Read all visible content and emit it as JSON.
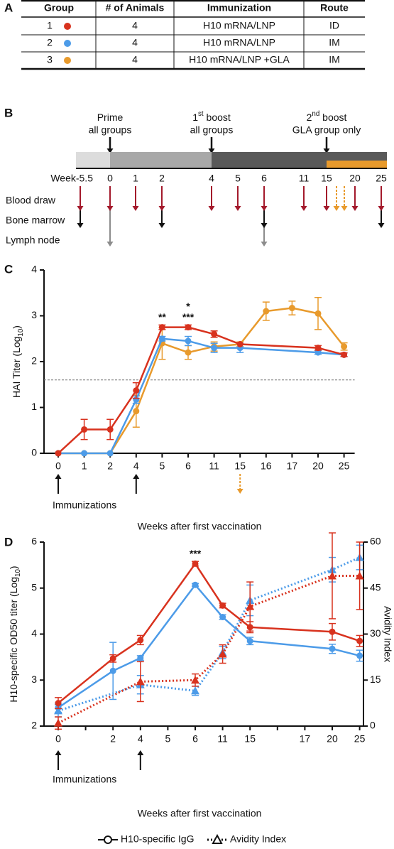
{
  "panel_a": {
    "label": "A",
    "table": {
      "header": [
        "Group",
        "# of Animals",
        "Immunization",
        "Route"
      ],
      "rows": [
        [
          "1",
          "4",
          "H10 mRNA/LNP",
          "ID"
        ],
        [
          "2",
          "4",
          "H10 mRNA/LNP",
          "IM"
        ],
        [
          "3",
          "4",
          "H10 mRNA/LNP +GLA",
          "IM"
        ]
      ],
      "group_colors": [
        "#d8321e",
        "#4c9be8",
        "#e89a2c"
      ]
    }
  },
  "panel_b": {
    "label": "B",
    "events": [
      {
        "title": [
          {
            "text": "Prime"
          }
        ],
        "subtitle": "all groups"
      },
      {
        "title": [
          {
            "text": "1"
          },
          {
            "text": "st",
            "sup": true
          },
          {
            "text": " boost"
          }
        ],
        "subtitle": "all groups"
      },
      {
        "title": [
          {
            "text": "2"
          },
          {
            "text": "nd",
            "sup": true
          },
          {
            "text": " boost"
          }
        ],
        "subtitle": "GLA group only"
      }
    ],
    "weeks": [
      "Week-5.5",
      "0",
      "1",
      "2",
      "4",
      "5",
      "6",
      "11",
      "15",
      "20",
      "25"
    ],
    "samples": [
      {
        "label": "Blood draw",
        "color": "#a3192b",
        "weeks": [
          "Week-5.5",
          "0",
          "1",
          "2",
          "4",
          "5",
          "6",
          "11",
          "15",
          "20",
          "25"
        ]
      },
      {
        "label": "Bone marrow",
        "color": "#111111",
        "weeks": [
          "Week-5.5",
          "2",
          "6",
          "25"
        ]
      },
      {
        "label": "Lymph node",
        "color": "#8c8c8c",
        "weeks": [
          "0",
          "6"
        ]
      }
    ],
    "gla_color": "#e89a2c"
  },
  "chart_data": [
    {
      "type": "line",
      "panel_label": "C",
      "y_label": [
        {
          "text": "HAI Titer (Log"
        },
        {
          "text": "10",
          "sub": true
        },
        {
          "text": ")"
        }
      ],
      "x_label": "Weeks after first vaccination",
      "x_note": "Immunizations",
      "immunizations_at": [
        "0",
        "4"
      ],
      "booster_at": [
        "15"
      ],
      "booster_color": "#e89a2c",
      "categories": [
        "0",
        "1",
        "2",
        "4",
        "5",
        "6",
        "11",
        "15",
        "16",
        "17",
        "20",
        "25"
      ],
      "ylim": [
        0,
        4
      ],
      "yticks": [
        0,
        1,
        2,
        3,
        4
      ],
      "threshold": 1.6,
      "series": [
        {
          "color": "#d8321e",
          "x": [
            "0",
            "1",
            "2",
            "4",
            "5",
            "6",
            "11",
            "15",
            "20",
            "25"
          ],
          "values": [
            0,
            0.52,
            0.52,
            1.37,
            2.75,
            2.75,
            2.6,
            2.38,
            2.3,
            2.15
          ],
          "errors": [
            null,
            0.22,
            0.22,
            0.17,
            0.05,
            0.05,
            0.07,
            null,
            0.05,
            0.04
          ]
        },
        {
          "color": "#4c9be8",
          "x": [
            "0",
            "1",
            "2",
            "4",
            "5",
            "6",
            "11",
            "15",
            "20",
            "25"
          ],
          "values": [
            0,
            0,
            0,
            1.17,
            2.5,
            2.45,
            2.3,
            2.3,
            2.2,
            2.15
          ],
          "errors": [
            null,
            null,
            null,
            0.08,
            0.05,
            0.1,
            0.1,
            0.1,
            0.04,
            0.04
          ]
        },
        {
          "color": "#e89a2c",
          "x": [
            "0",
            "1",
            "2",
            "4",
            "5",
            "6",
            "11",
            "15",
            "16",
            "17",
            "20",
            "25"
          ],
          "values": [
            0,
            0,
            0,
            0.92,
            2.4,
            2.2,
            2.33,
            2.38,
            3.1,
            3.17,
            3.05,
            2.33
          ],
          "errors": [
            null,
            null,
            null,
            0.35,
            0.35,
            0.15,
            0.1,
            0.05,
            0.2,
            0.15,
            0.35,
            0.08
          ]
        }
      ],
      "annotations": [
        {
          "text": "**",
          "x": "5",
          "color": "#e89a2c"
        },
        {
          "text": "***",
          "x": "6",
          "color": "#e89a2c"
        },
        {
          "text": "*",
          "x": "6",
          "color": "#4c9be8"
        }
      ]
    },
    {
      "type": "line",
      "panel_label": "D",
      "y_label": [
        {
          "text": "H10-specific OD50 titer (Log"
        },
        {
          "text": "10",
          "sub": true
        },
        {
          "text": ")"
        }
      ],
      "y2_label": "Avidity Index",
      "x_label": "Weeks after first vaccination",
      "x_note": "Immunizations",
      "immunizations_at": [
        "0",
        "4"
      ],
      "categories": [
        "0",
        null,
        "2",
        "4",
        "5",
        "6",
        "11",
        "15",
        null,
        "17",
        "20",
        "25"
      ],
      "ylim": [
        2,
        6
      ],
      "yticks": [
        2,
        3,
        4,
        5,
        6
      ],
      "y2lim": [
        0,
        60
      ],
      "y2ticks": [
        0,
        15,
        30,
        45,
        60
      ],
      "series": [
        {
          "color": "#d8321e",
          "style": "solid",
          "marker": "circle",
          "x": [
            "0",
            "2",
            "4",
            "6",
            "11",
            "15",
            "20",
            "25"
          ],
          "values": [
            2.5,
            3.47,
            3.87,
            5.53,
            4.62,
            4.15,
            4.05,
            3.85
          ],
          "errors": [
            0.12,
            0.08,
            0.1,
            0.05,
            0.05,
            0.12,
            0.18,
            0.12
          ]
        },
        {
          "color": "#4c9be8",
          "style": "solid",
          "marker": "circle",
          "x": [
            "0",
            "2",
            "4",
            "6",
            "11",
            "15",
            "20",
            "25"
          ],
          "values": [
            2.4,
            3.2,
            3.48,
            5.07,
            4.37,
            3.85,
            3.68,
            3.53
          ],
          "errors": [
            0.1,
            0.62,
            0.05,
            0.03,
            0.05,
            0.08,
            0.1,
            0.12
          ]
        },
        {
          "color": "#d8321e",
          "style": "dotted",
          "marker": "triangle",
          "axis": "y2",
          "x": [
            "0",
            "4",
            "6",
            "11",
            "15",
            "20",
            "25"
          ],
          "values": [
            1,
            14.5,
            15,
            23.5,
            39,
            49,
            49
          ],
          "errors": [
            2,
            6.5,
            2,
            3,
            8,
            14,
            11
          ]
        },
        {
          "color": "#4c9be8",
          "style": "dotted",
          "marker": "triangle",
          "axis": "y2",
          "x": [
            "0",
            "4",
            "6",
            "11",
            "15",
            "20",
            "25"
          ],
          "values": [
            5,
            13.5,
            11.5,
            24,
            41,
            51,
            55
          ],
          "errors": [
            2,
            3,
            1.5,
            2,
            5,
            4,
            4
          ]
        }
      ],
      "annotations": [
        {
          "text": "***",
          "x": "6",
          "color": "#4c9be8"
        }
      ],
      "legend": [
        {
          "label": "H10-specific IgG",
          "style": "solid",
          "marker": "circle"
        },
        {
          "label": "Avidity Index",
          "style": "dotted",
          "marker": "triangle"
        }
      ]
    }
  ]
}
